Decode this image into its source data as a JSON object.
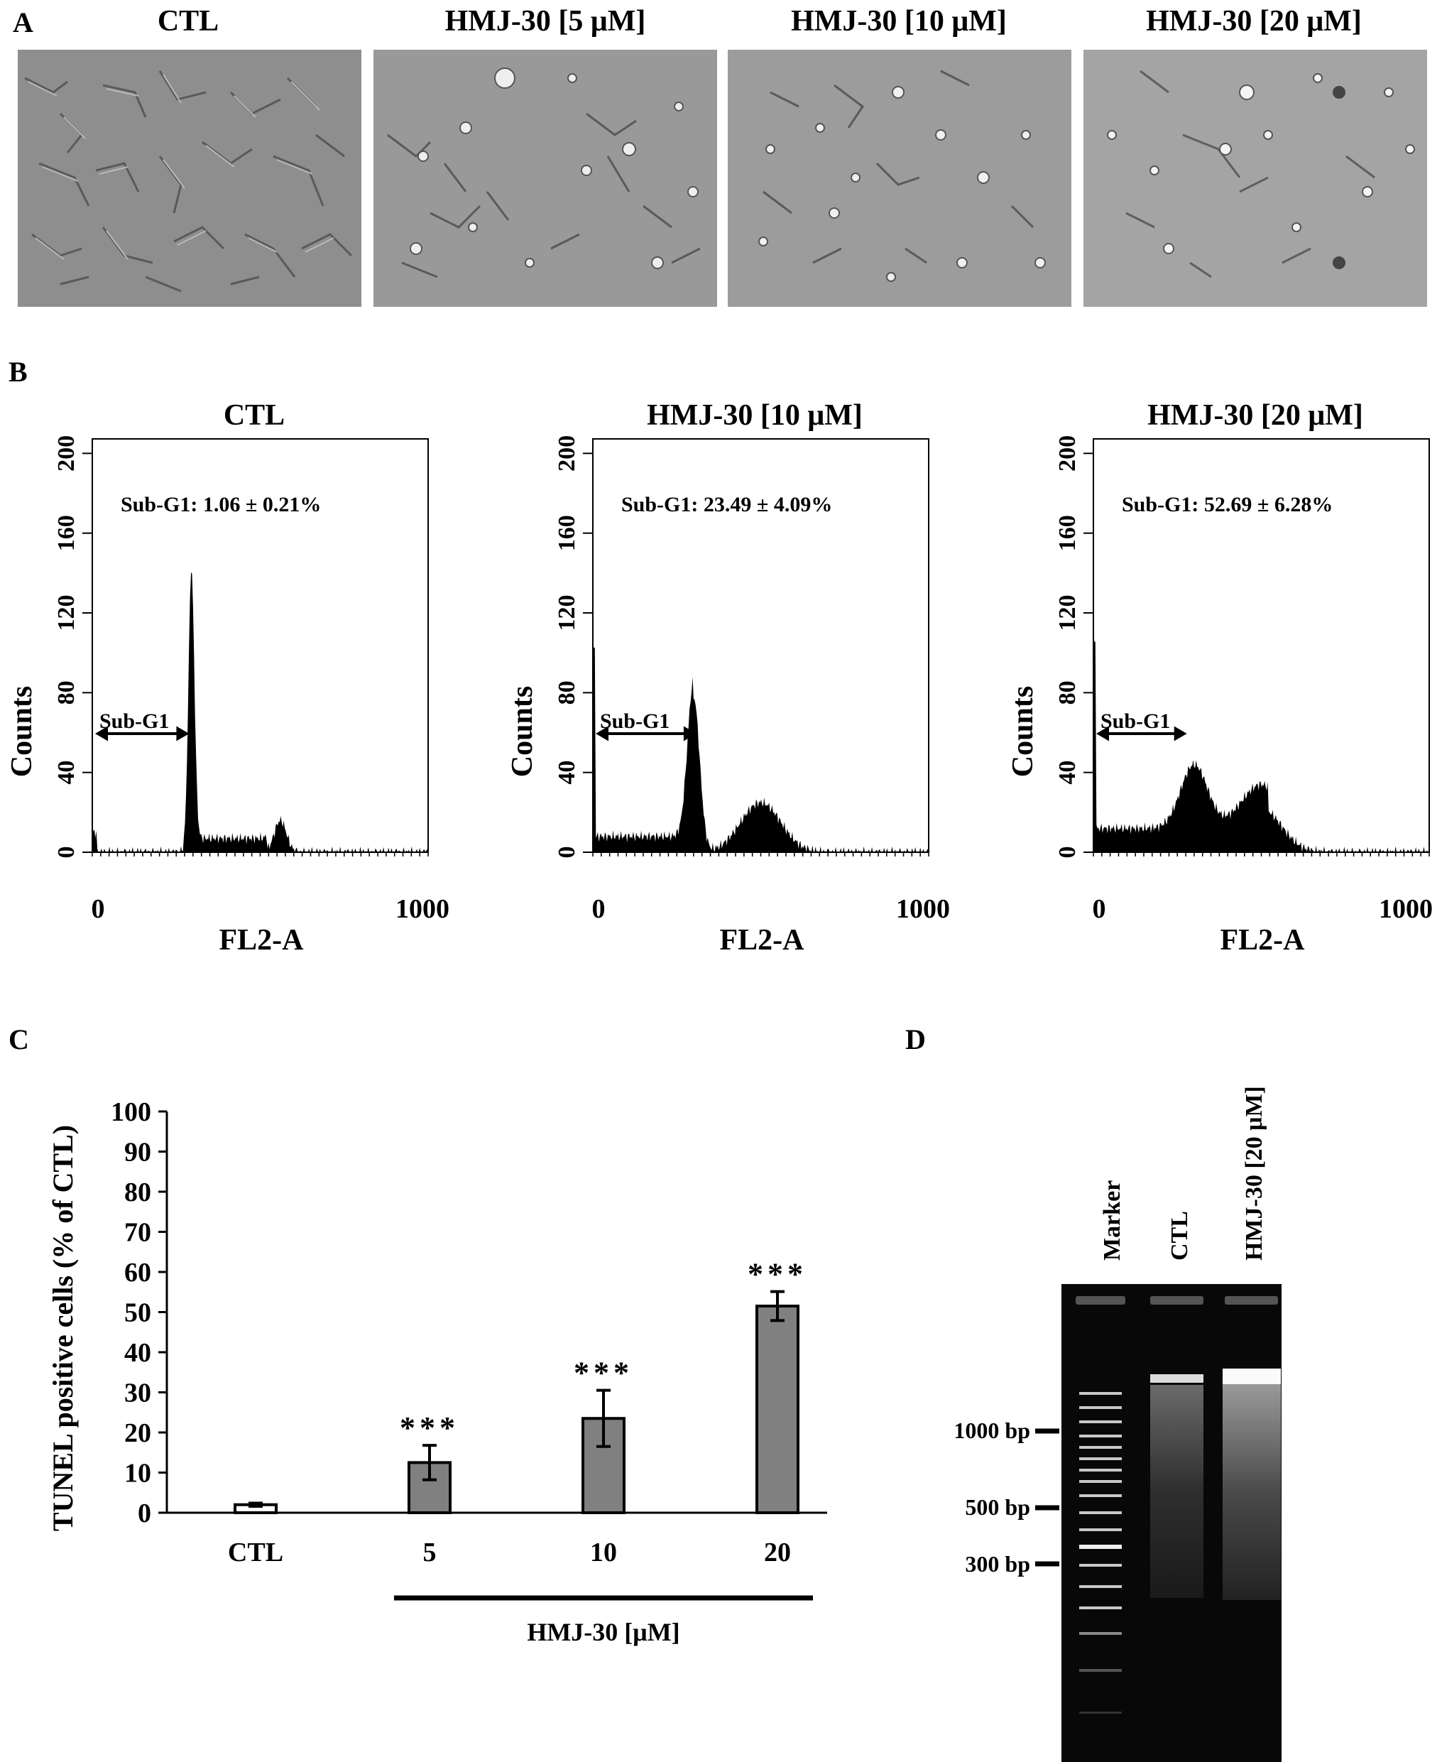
{
  "panel_a": {
    "label": "A",
    "titles": [
      "CTL",
      "HMJ-30 [5 μM]",
      "HMJ-30 [10 μM]",
      "HMJ-30 [20 μM]"
    ]
  },
  "panel_b": {
    "label": "B",
    "titles": [
      "CTL",
      "HMJ-30 [10 μM]",
      "HMJ-30 [20 μM]"
    ],
    "annotations": [
      "Sub-G1: 1.06 ± 0.21%",
      "Sub-G1: 23.49 ± 4.09%",
      "Sub-G1: 52.69 ± 6.28%"
    ],
    "gate_label": "Sub-G1",
    "ylabel": "Counts",
    "xlabel": "FL2-A",
    "yticks": [
      "0",
      "40",
      "80",
      "120",
      "160",
      "200"
    ],
    "xticks": [
      "0",
      "1000"
    ]
  },
  "panel_c": {
    "label": "C",
    "group_label": "HMJ-30 [μM]"
  },
  "panel_d": {
    "label": "D",
    "lanes": [
      "Marker",
      "CTL",
      "HMJ-30 [20 μM]"
    ],
    "bp_labels": [
      "1000 bp",
      "500 bp",
      "300 bp"
    ]
  },
  "chart_data": {
    "type": "bar",
    "categories": [
      "CTL",
      "5",
      "10",
      "20"
    ],
    "values": [
      2,
      12.5,
      23.5,
      51.5
    ],
    "errors": [
      0.4,
      4.3,
      7.0,
      3.6
    ],
    "significance": [
      "",
      "***",
      "***",
      "***"
    ],
    "ylabel": "TUNEL positive cells (% of CTL)",
    "ylim": [
      0,
      100
    ],
    "yticks": [
      "0",
      "10",
      "20",
      "30",
      "40",
      "50",
      "60",
      "70",
      "80",
      "90",
      "100"
    ],
    "bar_colors": [
      "#ffffff",
      "#808080",
      "#808080",
      "#808080"
    ]
  }
}
